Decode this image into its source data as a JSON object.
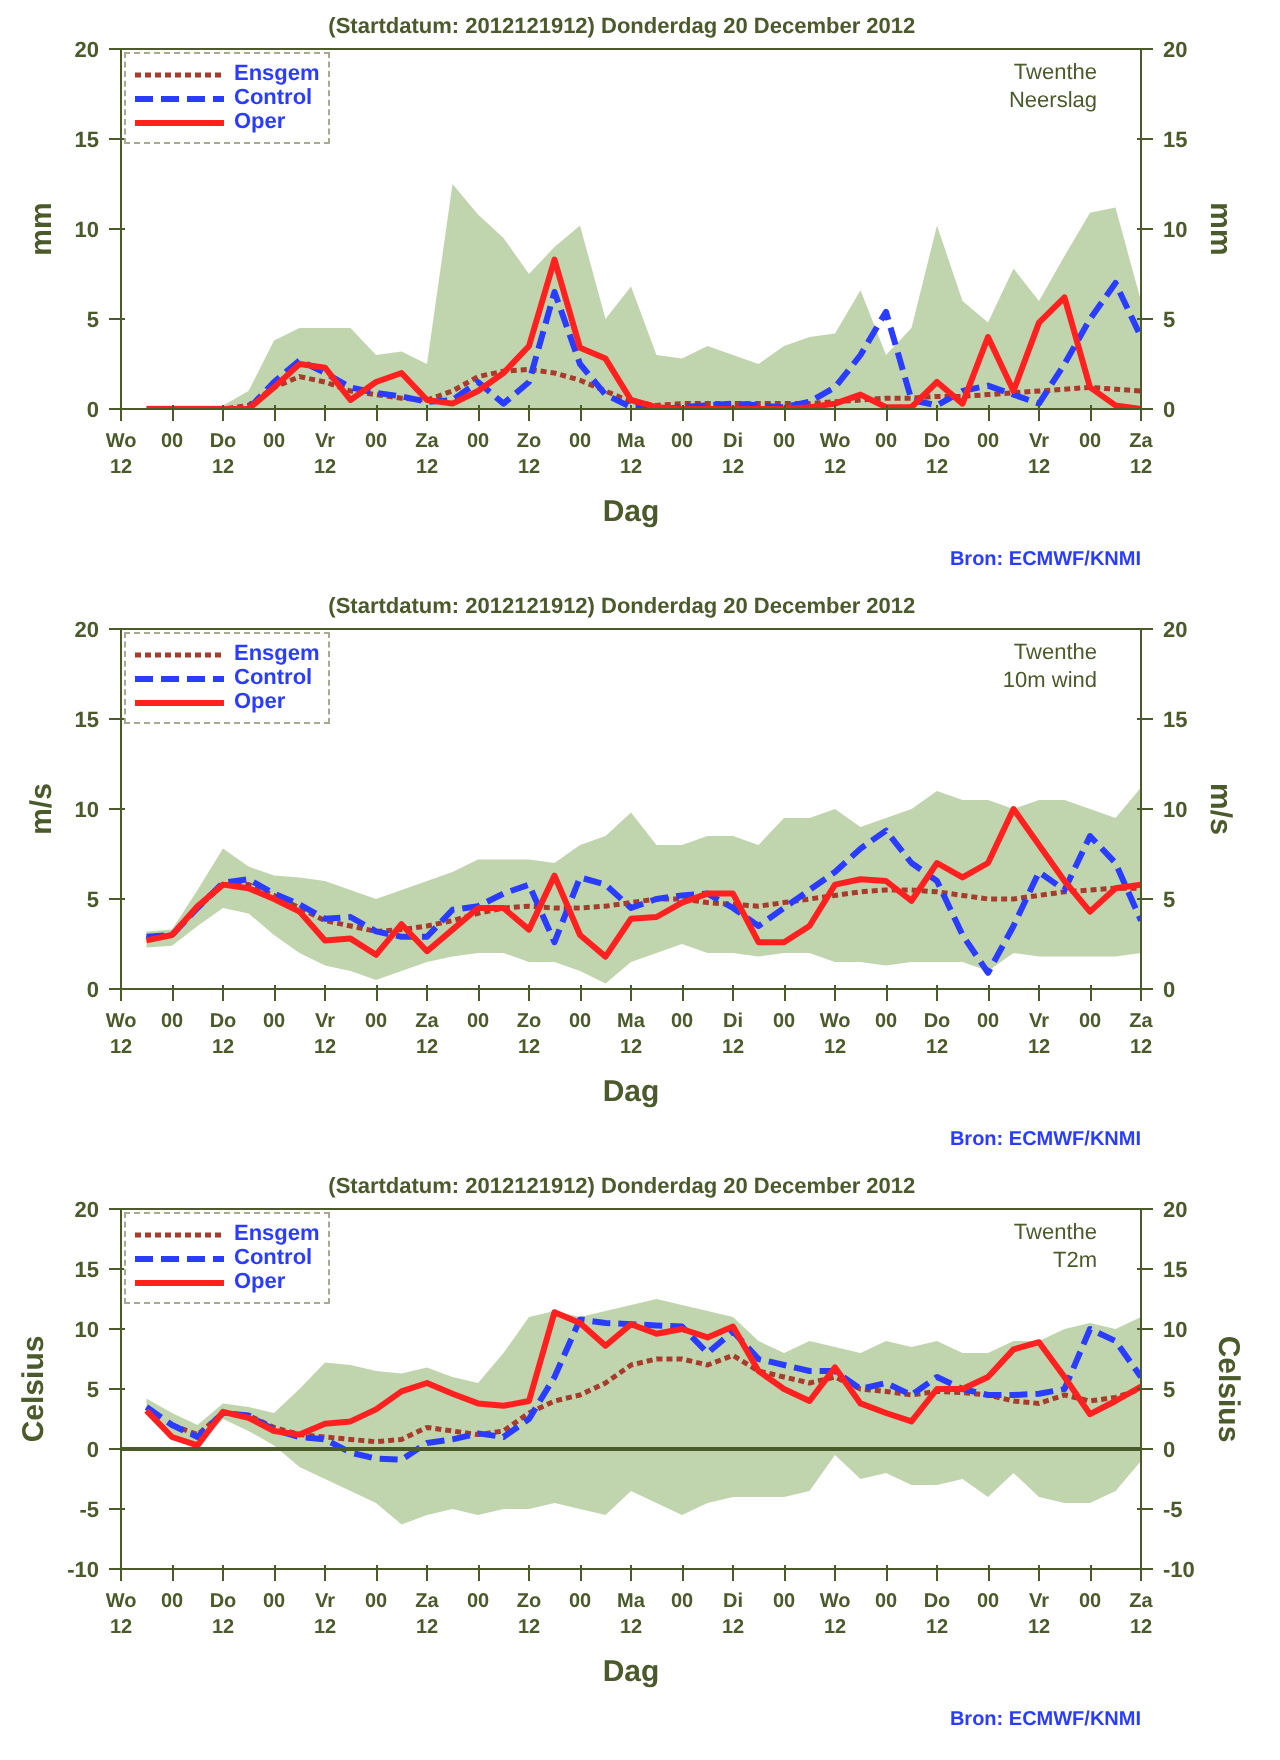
{
  "chart_data": [
    {
      "type": "line",
      "title": "(Startdatum: 2012121912)   Donderdag 20 December  2012",
      "xlabel": "Dag",
      "ylabel": "mm",
      "y2label": "mm",
      "annotations": [
        "Twenthe",
        "Neerslag",
        "Bron: ECMWF/KNMI"
      ],
      "ylim": [
        0,
        20
      ],
      "yticks": [
        0,
        5,
        10,
        15,
        20
      ],
      "y2lim": [
        0,
        20
      ],
      "y2ticks": [
        0,
        5,
        10,
        15,
        20
      ],
      "categories": [
        "Wo\n12",
        null,
        "00",
        null,
        "Do\n12",
        null,
        "00",
        null,
        "Vr\n12",
        null,
        "00",
        null,
        "Za\n12",
        null,
        "00",
        null,
        "Zo\n12",
        null,
        "00",
        null,
        "Ma\n12",
        null,
        "00",
        null,
        "Di\n12",
        null,
        "00",
        null,
        "Wo\n12",
        null,
        "00",
        null,
        "Do\n12",
        null,
        "00",
        null,
        "Vr\n12",
        null,
        "00",
        null,
        "Za\n12"
      ],
      "grid": false,
      "legend": "top left",
      "series": [
        {
          "name": "Ensgem",
          "color": "#a83c2c",
          "line_style": "dotted",
          "values": [
            null,
            null,
            null,
            0,
            0,
            0.2,
            1.2,
            1.8,
            1.5,
            1.0,
            0.8,
            0.6,
            0.5,
            1.0,
            1.8,
            2.1,
            2.2,
            2.0,
            1.6,
            1.0,
            0.4,
            0.2,
            0.3,
            0.3,
            0.3,
            0.3,
            0.3,
            0.3,
            0.4,
            0.5,
            0.6,
            0.6,
            0.7,
            0.7,
            0.8,
            0.9,
            1.0,
            1.1,
            1.2,
            1.1,
            1.0
          ],
          "lower": [
            null,
            0,
            0,
            0,
            0,
            0,
            0,
            0,
            0,
            0,
            0,
            0,
            0,
            0,
            0,
            0,
            0,
            0,
            0,
            0,
            0,
            0,
            0,
            0,
            0,
            0,
            0,
            0,
            0,
            0,
            0,
            0,
            0,
            0,
            0,
            0,
            0,
            0,
            0,
            0,
            0
          ],
          "upper": [
            null,
            0.2,
            0.2,
            0.2,
            0.2,
            1.0,
            3.8,
            4.5,
            4.5,
            4.5,
            3.0,
            3.2,
            2.5,
            12.5,
            10.8,
            9.5,
            7.5,
            9.0,
            10.2,
            5.0,
            6.8,
            3.0,
            2.8,
            3.5,
            3.0,
            2.5,
            3.5,
            4.0,
            4.2,
            6.6,
            3.0,
            4.5,
            10.2,
            6.0,
            4.8,
            7.8,
            6.0,
            8.5,
            10.9,
            11.2,
            6.0
          ]
        },
        {
          "name": "Control",
          "color": "#2a3cff",
          "line_style": "dashed",
          "values": [
            null,
            null,
            null,
            null,
            0,
            0,
            1.5,
            2.7,
            2.0,
            1.2,
            0.9,
            0.7,
            0.4,
            0.5,
            1.5,
            0.3,
            1.5,
            6.5,
            2.5,
            0.8,
            0.1,
            0,
            0.1,
            0.2,
            0.3,
            0.2,
            0.1,
            0.4,
            1.2,
            3.0,
            5.4,
            0.5,
            0.2,
            1.0,
            1.3,
            0.8,
            0.3,
            2.5,
            5.0,
            7.0,
            4.0
          ]
        },
        {
          "name": "Oper",
          "color": "#ff2020",
          "line_style": "solid",
          "values": [
            null,
            0,
            0,
            0,
            0,
            0,
            1.2,
            2.5,
            2.3,
            0.5,
            1.5,
            2.0,
            0.5,
            0.3,
            1.0,
            2.0,
            3.5,
            8.3,
            3.4,
            2.8,
            0.5,
            0.1,
            0,
            0,
            0,
            0,
            0,
            0.1,
            0.3,
            0.8,
            0.1,
            0.1,
            1.5,
            0.3,
            4.0,
            1.0,
            4.8,
            6.2,
            1.2,
            0.2,
            0
          ]
        }
      ]
    },
    {
      "type": "line",
      "title": "(Startdatum: 2012121912)   Donderdag 20 December  2012",
      "xlabel": "Dag",
      "ylabel": "m/s",
      "y2label": "m/s",
      "annotations": [
        "Twenthe",
        "10m wind",
        "Bron: ECMWF/KNMI"
      ],
      "ylim": [
        0,
        20
      ],
      "yticks": [
        0,
        5,
        10,
        15,
        20
      ],
      "y2lim": [
        0,
        20
      ],
      "y2ticks": [
        0,
        5,
        10,
        15,
        20
      ],
      "categories": [
        "Wo\n12",
        null,
        "00",
        null,
        "Do\n12",
        null,
        "00",
        null,
        "Vr\n12",
        null,
        "00",
        null,
        "Za\n12",
        null,
        "00",
        null,
        "Zo\n12",
        null,
        "00",
        null,
        "Ma\n12",
        null,
        "00",
        null,
        "Di\n12",
        null,
        "00",
        null,
        "Wo\n12",
        null,
        "00",
        null,
        "Do\n12",
        null,
        "00",
        null,
        "Vr\n12",
        null,
        "00",
        null,
        "Za\n12"
      ],
      "grid": false,
      "legend": "top left",
      "series": [
        {
          "name": "Ensgem",
          "color": "#a83c2c",
          "line_style": "dotted",
          "values": [
            null,
            2.8,
            3.0,
            4.5,
            5.8,
            5.8,
            5.2,
            4.5,
            3.8,
            3.5,
            3.2,
            3.3,
            3.5,
            3.8,
            4.2,
            4.5,
            4.6,
            4.5,
            4.5,
            4.6,
            4.8,
            5.0,
            5.0,
            4.8,
            4.7,
            4.6,
            4.8,
            5.0,
            5.2,
            5.4,
            5.5,
            5.5,
            5.4,
            5.2,
            5.0,
            5.0,
            5.2,
            5.4,
            5.5,
            5.6,
            5.6
          ],
          "lower": [
            null,
            2.3,
            2.4,
            3.5,
            4.5,
            4.2,
            3.0,
            2.0,
            1.3,
            1.0,
            0.5,
            1.0,
            1.5,
            1.8,
            2.0,
            2.0,
            1.5,
            1.5,
            1.0,
            0.3,
            1.5,
            2.0,
            2.5,
            2.0,
            2.0,
            1.8,
            2.0,
            2.0,
            1.5,
            1.5,
            1.3,
            1.5,
            1.5,
            1.5,
            1.0,
            2.0,
            1.8,
            1.8,
            1.8,
            1.8,
            2.0
          ],
          "upper": [
            null,
            3.2,
            3.3,
            5.5,
            7.8,
            6.8,
            6.3,
            6.2,
            6.0,
            5.5,
            5.0,
            5.5,
            6.0,
            6.5,
            7.2,
            7.2,
            7.2,
            7.0,
            8.0,
            8.5,
            9.8,
            8.0,
            8.0,
            8.5,
            8.5,
            8.0,
            9.5,
            9.5,
            10.0,
            9.0,
            9.5,
            10.0,
            11.0,
            10.5,
            10.5,
            10.0,
            10.5,
            10.5,
            10.0,
            9.5,
            11.2
          ]
        },
        {
          "name": "Control",
          "color": "#2a3cff",
          "line_style": "dashed",
          "values": [
            null,
            2.9,
            3.0,
            4.5,
            5.9,
            6.1,
            5.3,
            4.7,
            3.9,
            4.0,
            3.2,
            2.9,
            2.9,
            4.4,
            4.6,
            5.3,
            5.8,
            2.6,
            6.2,
            5.8,
            4.5,
            5.0,
            5.2,
            5.3,
            4.5,
            3.5,
            4.5,
            5.5,
            6.5,
            7.8,
            8.8,
            7.0,
            6.0,
            3.0,
            0.9,
            3.5,
            6.5,
            5.5,
            8.5,
            7.0,
            3.8
          ]
        },
        {
          "name": "Oper",
          "color": "#ff2020",
          "line_style": "solid",
          "values": [
            null,
            2.7,
            3.0,
            4.6,
            5.8,
            5.6,
            5.0,
            4.3,
            2.7,
            2.8,
            1.9,
            3.6,
            2.1,
            3.3,
            4.5,
            4.5,
            3.3,
            6.3,
            3.0,
            1.8,
            3.9,
            4.0,
            4.8,
            5.3,
            5.3,
            2.6,
            2.6,
            3.5,
            5.8,
            6.1,
            6.0,
            4.9,
            7.0,
            6.2,
            7.0,
            10.0,
            8.0,
            6.0,
            4.3,
            5.6,
            5.8
          ]
        }
      ]
    },
    {
      "type": "line",
      "title": "(Startdatum: 2012121912)   Donderdag 20 December  2012",
      "xlabel": "Dag",
      "ylabel": "Celsius",
      "y2label": "Celsius",
      "annotations": [
        "Twenthe",
        "T2m",
        "Bron: ECMWF/KNMI"
      ],
      "ylim": [
        -10,
        20
      ],
      "yticks": [
        -10,
        -5,
        0,
        5,
        10,
        15,
        20
      ],
      "y2lim": [
        -10,
        20
      ],
      "y2ticks": [
        -10,
        -5,
        0,
        5,
        10,
        15,
        20
      ],
      "categories": [
        "Wo\n12",
        null,
        "00",
        null,
        "Do\n12",
        null,
        "00",
        null,
        "Vr\n12",
        null,
        "00",
        null,
        "Za\n12",
        null,
        "00",
        null,
        "Zo\n12",
        null,
        "00",
        null,
        "Ma\n12",
        null,
        "00",
        null,
        "Di\n12",
        null,
        "00",
        null,
        "Wo\n12",
        null,
        "00",
        null,
        "Do\n12",
        null,
        "00",
        null,
        "Vr\n12",
        null,
        "00",
        null,
        "Za\n12"
      ],
      "grid": false,
      "legend": "top left",
      "ref_lines": [
        {
          "axis": "y",
          "value": 0,
          "color": "#4a5a2a"
        }
      ],
      "series": [
        {
          "name": "Ensgem",
          "color": "#a83c2c",
          "line_style": "dotted",
          "values": [
            null,
            null,
            2.0,
            1.2,
            3.0,
            2.8,
            1.8,
            1.2,
            1.0,
            0.8,
            0.6,
            0.8,
            1.8,
            1.5,
            1.2,
            1.5,
            3.0,
            4.0,
            4.5,
            5.5,
            7.0,
            7.5,
            7.5,
            7.0,
            7.8,
            6.5,
            6.0,
            5.5,
            6.0,
            5.0,
            4.8,
            4.5,
            4.8,
            4.7,
            4.5,
            4.0,
            3.8,
            4.5,
            4.0,
            4.3,
            5.0
          ],
          "lower": [
            null,
            3.0,
            0.8,
            0.2,
            2.5,
            1.5,
            0.3,
            -1.5,
            -2.5,
            -3.5,
            -4.5,
            -6.3,
            -5.5,
            -5.0,
            -5.5,
            -5.0,
            -5.0,
            -4.5,
            -5.0,
            -5.5,
            -3.5,
            -4.5,
            -5.5,
            -4.5,
            -4.0,
            -4.0,
            -4.0,
            -3.5,
            -0.5,
            -2.5,
            -2.0,
            -3.0,
            -3.0,
            -2.5,
            -4.0,
            -2.0,
            -4.0,
            -4.5,
            -4.5,
            -3.5,
            -1.0
          ],
          "upper": [
            null,
            4.2,
            3.0,
            2.0,
            3.8,
            3.5,
            3.0,
            5.0,
            7.2,
            7.0,
            6.5,
            6.3,
            6.8,
            6.0,
            5.5,
            8.0,
            11.0,
            11.5,
            11.0,
            11.5,
            12.0,
            12.5,
            12.0,
            11.5,
            11.0,
            9.0,
            8.0,
            9.0,
            8.5,
            8.0,
            9.0,
            8.5,
            9.0,
            8.0,
            8.0,
            9.0,
            9.0,
            10.0,
            10.5,
            10.0,
            11.0
          ]
        },
        {
          "name": "Control",
          "color": "#2a3cff",
          "line_style": "dashed",
          "values": [
            null,
            3.5,
            2.0,
            1.0,
            3.0,
            2.8,
            1.6,
            1.0,
            0.8,
            -0.3,
            -0.8,
            -0.9,
            0.5,
            0.8,
            1.3,
            1.0,
            2.5,
            6.0,
            10.8,
            10.5,
            10.4,
            10.3,
            10.2,
            8.0,
            9.8,
            7.5,
            7.0,
            6.5,
            6.5,
            5.0,
            5.5,
            4.5,
            6.0,
            5.0,
            4.5,
            4.5,
            4.6,
            5.0,
            10.0,
            9.0,
            6.0
          ]
        },
        {
          "name": "Oper",
          "color": "#ff2020",
          "line_style": "solid",
          "values": [
            null,
            3.2,
            1.0,
            0.3,
            3.1,
            2.6,
            1.5,
            1.2,
            2.1,
            2.3,
            3.3,
            4.8,
            5.5,
            4.6,
            3.8,
            3.6,
            4.0,
            11.4,
            10.5,
            8.6,
            10.4,
            9.6,
            10.0,
            9.3,
            10.2,
            6.5,
            5.0,
            4.0,
            6.8,
            3.8,
            3.0,
            2.3,
            5.0,
            5.0,
            6.0,
            8.3,
            8.9,
            6.0,
            2.9,
            4.0,
            5.2
          ]
        }
      ]
    }
  ]
}
